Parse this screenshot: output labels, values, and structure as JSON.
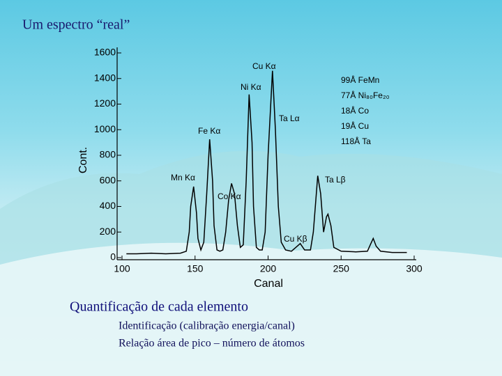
{
  "slide": {
    "title": "Um espectro “real”",
    "heading": "Quantificação de cada elemento",
    "bullets": [
      "Identificação (calibração energia/canal)",
      "Relação área de pico – número de átomos"
    ]
  },
  "chart_data": {
    "type": "line",
    "x_label": "Canal",
    "y_label": "Cont.",
    "x": [
      103,
      110,
      120,
      130,
      140,
      144,
      146,
      147,
      149,
      151,
      152,
      154,
      156,
      158,
      160,
      162,
      163,
      165,
      167,
      169,
      171,
      173,
      175,
      177,
      179,
      181,
      183,
      185,
      187,
      189,
      190,
      192,
      194,
      196,
      198,
      200,
      203,
      205,
      207,
      209,
      212,
      216,
      219,
      222,
      225,
      229,
      231,
      234,
      236,
      238,
      240,
      241,
      243,
      245,
      250,
      260,
      268,
      270,
      272,
      274,
      277,
      285,
      295
    ],
    "series": [
      {
        "color": "#000000",
        "values": [
          30,
          30,
          35,
          30,
          35,
          50,
          200,
          400,
          555,
          350,
          150,
          60,
          120,
          500,
          925,
          600,
          250,
          60,
          50,
          60,
          200,
          450,
          580,
          500,
          250,
          80,
          100,
          600,
          1275,
          900,
          400,
          80,
          60,
          60,
          200,
          800,
          1460,
          1000,
          400,
          120,
          60,
          50,
          80,
          110,
          60,
          60,
          200,
          640,
          500,
          200,
          320,
          340,
          250,
          80,
          50,
          45,
          50,
          100,
          150,
          90,
          50,
          40,
          40
        ]
      }
    ],
    "xlim": [
      100,
      300
    ],
    "xticks": [
      100,
      150,
      200,
      250,
      300
    ],
    "ylim": [
      0,
      1600
    ],
    "yticks": [
      0,
      200,
      400,
      600,
      800,
      1000,
      1200,
      1400,
      1600
    ],
    "annotations": [
      "Cu Kα",
      "Ni Kα",
      "Ta Lα",
      "Fe Kα",
      "Mn Kα",
      "Co Kα",
      "Ta Lβ",
      "Cu Kβ"
    ],
    "sample_labels": [
      "99Å FeMn",
      "77Å Ni₈₀Fe₂₀",
      "18Å Co",
      "19Å Cu",
      "118Å Ta"
    ]
  }
}
